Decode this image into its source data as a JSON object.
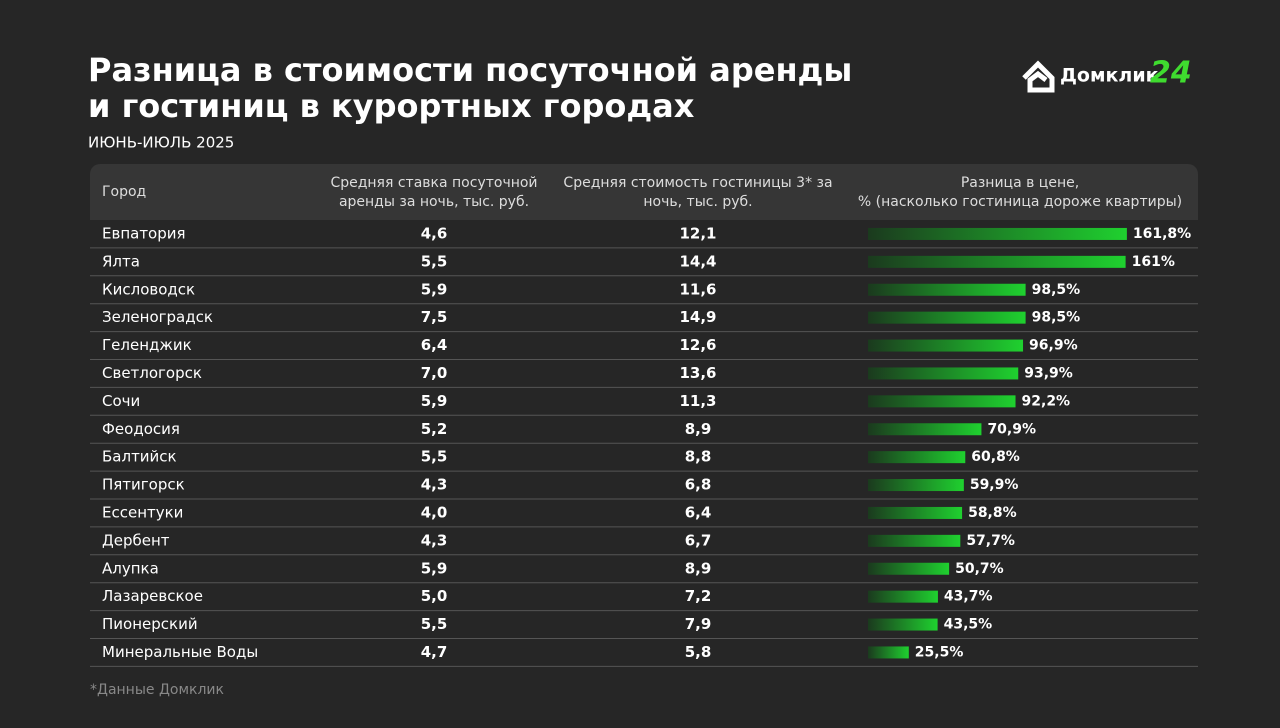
{
  "header": {
    "title_line1": "Разница в стоимости посуточной аренды",
    "title_line2": "и гостиниц в курортных городах",
    "subtitle": "ИЮНЬ-ИЮЛЬ 2025",
    "logo": "Домклик",
    "logo_badge": "24"
  },
  "table": {
    "columns": [
      "Город",
      "Средняя ставка посуточной аренды за ночь, тыс. руб.",
      "Средняя стоимость гостиницы 3* за ночь, тыс. руб.",
      "Разница в цене, % (насколько гостиница дороже квартиры)"
    ],
    "bar_color": "#1fd12f",
    "rows": [
      [
        "Евпатория",
        "4,6",
        "12,1",
        {
          "value": 161.8,
          "label": "161,8%"
        }
      ],
      [
        "Ялта",
        "5,5",
        "14,4",
        {
          "value": 161,
          "label": "161%"
        }
      ],
      [
        "Кисловодск",
        "5,9",
        "11,6",
        {
          "value": 98.5,
          "label": "98,5%"
        }
      ],
      [
        "Зеленоградск",
        "7,5",
        "14,9",
        {
          "value": 98.5,
          "label": "98,5%"
        }
      ],
      [
        "Геленджик",
        "6,4",
        "12,6",
        {
          "value": 96.9,
          "label": "96,9%"
        }
      ],
      [
        "Светлогорск",
        "7,0",
        "13,6",
        {
          "value": 93.9,
          "label": "93,9%"
        }
      ],
      [
        "Сочи",
        "5,9",
        "11,3",
        {
          "value": 92.2,
          "label": "92,2%"
        }
      ],
      [
        "Феодосия",
        "5,2",
        "8,9",
        {
          "value": 70.9,
          "label": "70,9%"
        }
      ],
      [
        "Балтийск",
        "5,5",
        "8,8",
        {
          "value": 60.8,
          "label": "60,8%"
        }
      ],
      [
        "Пятигорск",
        "4,3",
        "6,8",
        {
          "value": 59.9,
          "label": "59,9%"
        }
      ],
      [
        "Ессентуки",
        "4,0",
        "6,4",
        {
          "value": 58.8,
          "label": "58,8%"
        }
      ],
      [
        "Дербент",
        "4,3",
        "6,7",
        {
          "value": 57.7,
          "label": "57,7%"
        }
      ],
      [
        "Алупка",
        "5,9",
        "8,9",
        {
          "value": 50.7,
          "label": "50,7%"
        }
      ],
      [
        "Лазаревское",
        "5,0",
        "7,2",
        {
          "value": 43.7,
          "label": "43,7%"
        }
      ],
      [
        "Пионерский",
        "5,5",
        "7,9",
        {
          "value": 43.5,
          "label": "43,5%"
        }
      ],
      [
        "Минеральные Воды",
        "4,7",
        "5,8",
        {
          "value": 25.5,
          "label": "25,5%"
        }
      ]
    ]
  },
  "footnote": "*Данные Домклик"
}
